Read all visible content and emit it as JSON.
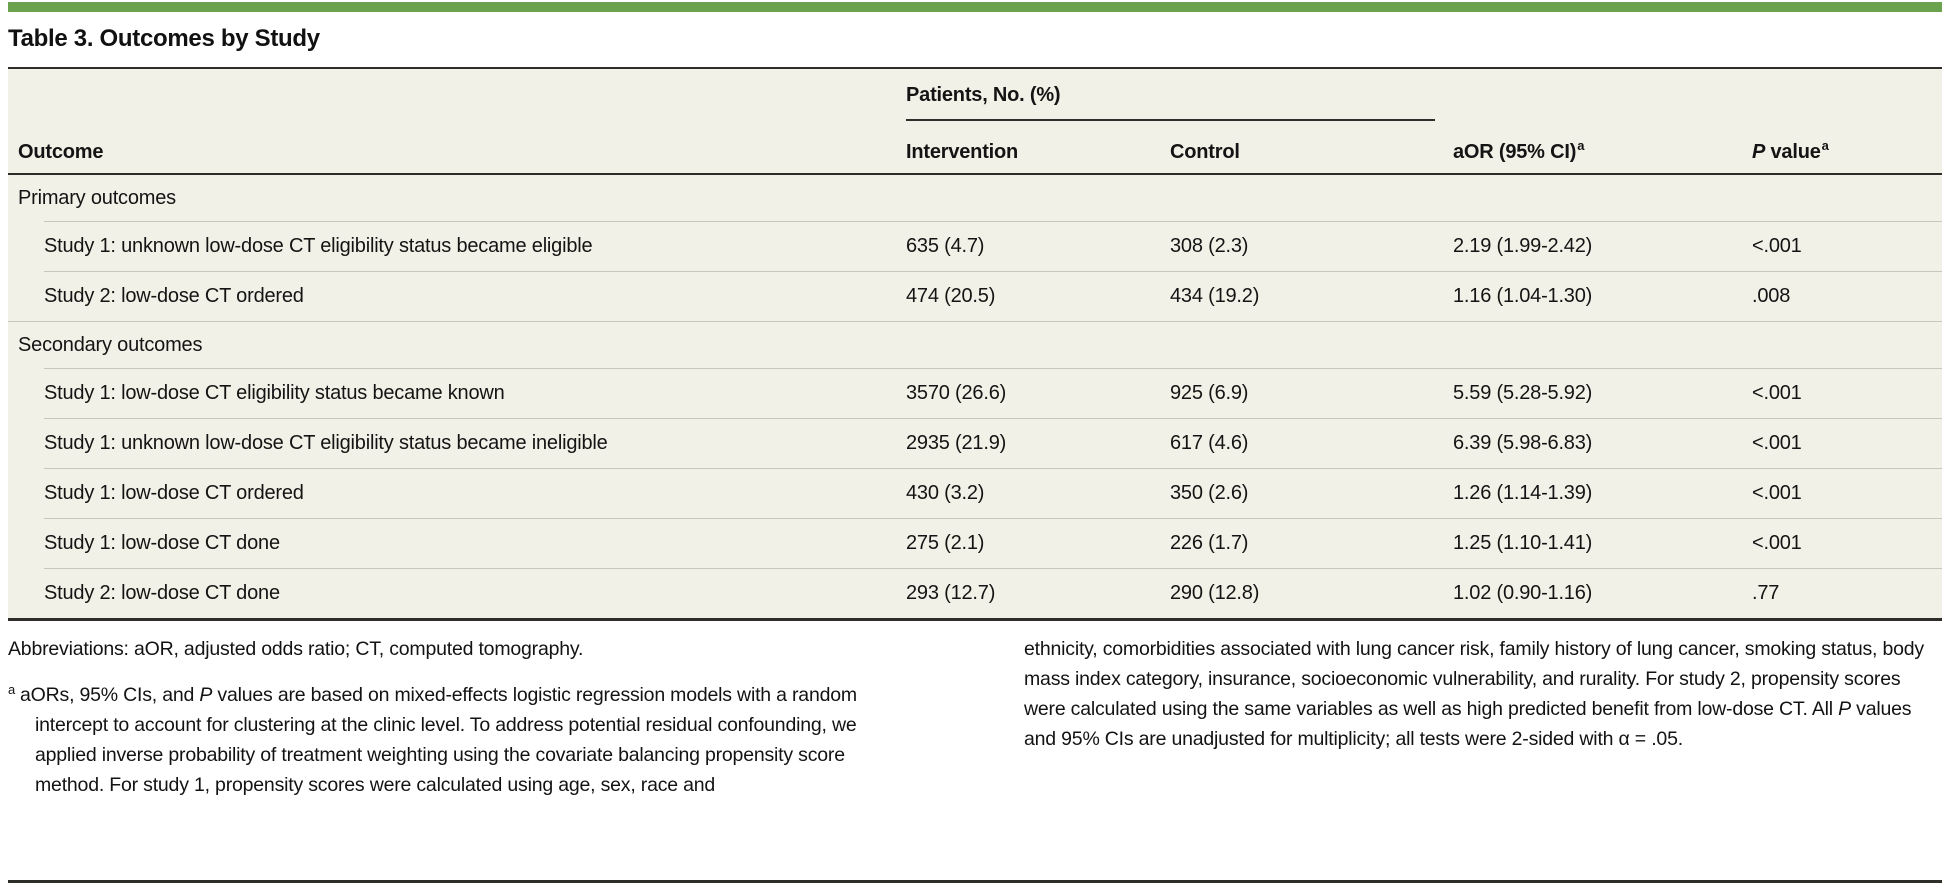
{
  "colors": {
    "accent_green": "#6AA24D",
    "table_background": "#F2F1E7",
    "rule_dark": "#2E2D29",
    "row_separator": "#C8C7BB",
    "text": "#141414"
  },
  "title": "Table 3. Outcomes by Study",
  "table": {
    "group_header": "Patients, No. (%)",
    "columns": {
      "outcome": "Outcome",
      "intervention": "Intervention",
      "control": "Control",
      "aor": "aOR (95% CI)",
      "p_italic": "P",
      "p_rest": " value",
      "footnote_marker": "a"
    },
    "sections": [
      {
        "label": "Primary outcomes",
        "rows": [
          {
            "outcome": "Study 1: unknown low-dose CT eligibility status became eligible",
            "intervention": "635 (4.7)",
            "control": "308 (2.3)",
            "aor": "2.19 (1.99-2.42)",
            "p_value": "<.001"
          },
          {
            "outcome": "Study 2: low-dose CT ordered",
            "intervention": "474 (20.5)",
            "control": "434 (19.2)",
            "aor": "1.16 (1.04-1.30)",
            "p_value": ".008"
          }
        ]
      },
      {
        "label": "Secondary outcomes",
        "rows": [
          {
            "outcome": "Study 1: low-dose CT eligibility status became known",
            "intervention": "3570 (26.6)",
            "control": "925 (6.9)",
            "aor": "5.59 (5.28-5.92)",
            "p_value": "<.001"
          },
          {
            "outcome": "Study 1: unknown low-dose CT eligibility status became ineligible",
            "intervention": "2935 (21.9)",
            "control": "617 (4.6)",
            "aor": "6.39 (5.98-6.83)",
            "p_value": "<.001"
          },
          {
            "outcome": "Study 1: low-dose CT ordered",
            "intervention": "430 (3.2)",
            "control": "350 (2.6)",
            "aor": "1.26 (1.14-1.39)",
            "p_value": "<.001"
          },
          {
            "outcome": "Study 1: low-dose CT done",
            "intervention": "275 (2.1)",
            "control": "226 (1.7)",
            "aor": "1.25 (1.10-1.41)",
            "p_value": "<.001"
          },
          {
            "outcome": "Study 2: low-dose CT done",
            "intervention": "293 (12.7)",
            "control": "290 (12.8)",
            "aor": "1.02 (0.90-1.16)",
            "p_value": ".77"
          }
        ]
      }
    ]
  },
  "footnotes": {
    "marker": "a",
    "abbreviations": "Abbreviations: aOR, adjusted odds ratio; CT, computed tomography.",
    "note_a": {
      "before_p": "aORs, 95% CIs, and ",
      "p": "P",
      "after_p": " values are based on mixed-effects logistic regression models with a random intercept to account for clustering at the clinic level. To address potential residual confounding, we applied inverse probability of treatment weighting using the covariate balancing propensity score method. For study 1, propensity scores were calculated using age, sex, race and"
    },
    "note_a_continued": {
      "before_p": "ethnicity, comorbidities associated with lung cancer risk, family history of lung cancer, smoking status, body mass index category, insurance, socioeconomic vulnerability, and rurality. For study 2, propensity scores were calculated using the same variables as well as high predicted benefit from low-dose CT. All ",
      "p": "P",
      "after_p": " values and 95% CIs are unadjusted for multiplicity; all tests were 2-sided with α = .05."
    }
  }
}
